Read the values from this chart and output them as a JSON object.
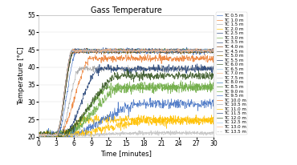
{
  "title": "Gass Temperature",
  "xlabel": "Time [minutes]",
  "ylabel": "Temperature [°C]",
  "xlim": [
    0,
    30
  ],
  "ylim": [
    20,
    55
  ],
  "xticks": [
    0,
    3,
    6,
    9,
    12,
    15,
    18,
    21,
    24,
    27,
    30
  ],
  "yticks": [
    20,
    25,
    30,
    35,
    40,
    45,
    50,
    55
  ],
  "series": [
    {
      "label": "TC 0.5 m",
      "color": "#4472C4",
      "final": 44.5,
      "rise_start": 3.2,
      "rise_end": 6.5,
      "noise": 0.7,
      "dashed": false
    },
    {
      "label": "TC 1.0 m",
      "color": "#ED7D31",
      "final": 42.5,
      "rise_start": 3.4,
      "rise_end": 9.0,
      "noise": 1.0,
      "dashed": false
    },
    {
      "label": "TC 1.5 m",
      "color": "#A5A5A5",
      "final": 39.5,
      "rise_start": 3.6,
      "rise_end": 7.0,
      "noise": 0.8,
      "dashed": false
    },
    {
      "label": "TC 2.0 m",
      "color": "#FFC000",
      "final": 25.0,
      "rise_start": 3.8,
      "rise_end": 8.0,
      "noise": 1.3,
      "dashed": false
    },
    {
      "label": "TC 2.5 m",
      "color": "#264478",
      "final": 39.5,
      "rise_start": 4.2,
      "rise_end": 10.5,
      "noise": 1.2,
      "dashed": false
    },
    {
      "label": "TC 3.0 m",
      "color": "#70AD47",
      "final": 34.0,
      "rise_start": 4.5,
      "rise_end": 12.0,
      "noise": 1.4,
      "dashed": false
    },
    {
      "label": "TC 3.5 m",
      "color": "#264478",
      "final": 44.8,
      "rise_start": 3.0,
      "rise_end": 6.0,
      "noise": 0.5,
      "dashed": false
    },
    {
      "label": "TC 4.0 m",
      "color": "#843C0C",
      "final": 44.5,
      "rise_start": 3.0,
      "rise_end": 6.0,
      "noise": 0.6,
      "dashed": false
    },
    {
      "label": "TC 4.5 m",
      "color": "#636363",
      "final": 44.5,
      "rise_start": 3.0,
      "rise_end": 6.0,
      "noise": 0.5,
      "dashed": false
    },
    {
      "label": "TC 5.0 m",
      "color": "#806000",
      "final": 44.5,
      "rise_start": 3.0,
      "rise_end": 6.0,
      "noise": 0.5,
      "dashed": false
    },
    {
      "label": "TC 5.5 m",
      "color": "#203864",
      "final": 44.8,
      "rise_start": 3.0,
      "rise_end": 6.0,
      "noise": 0.5,
      "dashed": false
    },
    {
      "label": "TC 6.0 m",
      "color": "#375623",
      "final": 44.6,
      "rise_start": 3.0,
      "rise_end": 6.0,
      "noise": 0.5,
      "dashed": false
    },
    {
      "label": "TC 6.5 m",
      "color": "#9DC3E6",
      "final": 44.8,
      "rise_start": 3.0,
      "rise_end": 5.8,
      "noise": 0.5,
      "dashed": false
    },
    {
      "label": "TC 7.0 m",
      "color": "#F4B183",
      "final": 44.8,
      "rise_start": 3.0,
      "rise_end": 5.8,
      "noise": 0.5,
      "dashed": false
    },
    {
      "label": "TC 7.5 m",
      "color": "#BFBFBF",
      "final": 21.2,
      "rise_start": 3.0,
      "rise_end": 20.0,
      "noise": 0.5,
      "dashed": false
    },
    {
      "label": "TC 8.0 m",
      "color": "#2E75B6",
      "final": 44.8,
      "rise_start": 3.0,
      "rise_end": 5.8,
      "noise": 0.5,
      "dashed": false
    },
    {
      "label": "TC 8.5 m",
      "color": "#548235",
      "final": 44.7,
      "rise_start": 3.0,
      "rise_end": 5.8,
      "noise": 0.5,
      "dashed": false
    },
    {
      "label": "TC 9.0 m",
      "color": "#70AD47",
      "final": 34.5,
      "rise_start": 4.0,
      "rise_end": 15.0,
      "noise": 1.5,
      "dashed": false
    },
    {
      "label": "TC 9.5 m",
      "color": "#4472C4",
      "final": 29.5,
      "rise_start": 4.5,
      "rise_end": 18.0,
      "noise": 1.5,
      "dashed": false
    },
    {
      "label": "TC 10.0 m",
      "color": "#ED7D31",
      "final": 44.7,
      "rise_start": 3.0,
      "rise_end": 5.8,
      "noise": 0.5,
      "dashed": false
    },
    {
      "label": "TC 10.5 m",
      "color": "#A5A5A5",
      "final": 44.7,
      "rise_start": 3.0,
      "rise_end": 5.8,
      "noise": 0.5,
      "dashed": false
    },
    {
      "label": "TC 11.0 m",
      "color": "#FFC000",
      "final": 24.5,
      "rise_start": 3.5,
      "rise_end": 20.0,
      "noise": 1.2,
      "dashed": false
    },
    {
      "label": "TC 11.5 m",
      "color": "#264478",
      "final": 44.7,
      "rise_start": 3.0,
      "rise_end": 5.8,
      "noise": 0.5,
      "dashed": false
    },
    {
      "label": "TC 12.0 m",
      "color": "#375623",
      "final": 37.5,
      "rise_start": 3.5,
      "rise_end": 14.0,
      "noise": 1.3,
      "dashed": false
    },
    {
      "label": "TC 12.5 m",
      "color": "#9DC3E6",
      "final": 44.7,
      "rise_start": 3.0,
      "rise_end": 5.8,
      "noise": 0.5,
      "dashed": false
    },
    {
      "label": "TC 13.0 m",
      "color": "#F4B183",
      "final": 44.7,
      "rise_start": 3.0,
      "rise_end": 5.8,
      "noise": 0.5,
      "dashed": false
    },
    {
      "label": "TC 13.5 m",
      "color": "#C9C9C9",
      "final": 21.0,
      "rise_start": 3.0,
      "rise_end": 20.0,
      "noise": 0.5,
      "dashed": true
    }
  ],
  "bg_color": "#FFFFFF",
  "grid_color": "#E0E0E0",
  "title_fontsize": 7,
  "label_fontsize": 6,
  "tick_fontsize": 5.5,
  "legend_fontsize": 4.0,
  "figsize": [
    3.7,
    2.06
  ],
  "dpi": 100
}
